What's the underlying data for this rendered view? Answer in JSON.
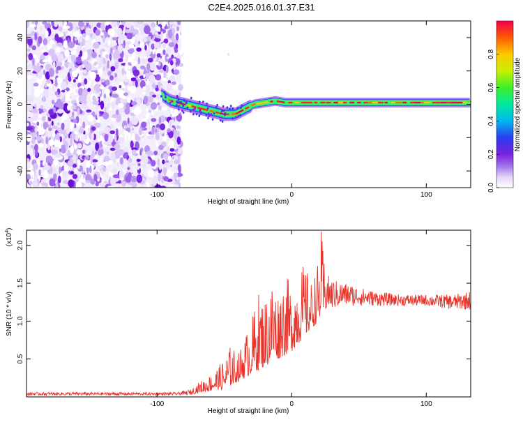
{
  "title": "C2E4.2025.016.01.37.E31",
  "chart_data": [
    {
      "type": "heatmap",
      "xlabel": "Height of straight line (km)",
      "ylabel": "Frequency (Hz)",
      "xlim": [
        -197,
        133
      ],
      "ylim": [
        -50,
        50
      ],
      "xticks": [
        -100,
        0,
        100
      ],
      "yticks": [
        -40,
        -20,
        0,
        20,
        40
      ],
      "noise_region_x": [
        -197,
        -82
      ],
      "signal_trace": {
        "x": [
          -97,
          -90,
          -80,
          -70,
          -60,
          -50,
          -42,
          -35,
          -28,
          -20,
          -12,
          -5,
          0,
          10,
          20,
          30,
          40,
          60,
          80,
          100,
          120,
          133
        ],
        "y": [
          6,
          2,
          0,
          -2,
          -4,
          -6,
          -6,
          -3,
          0,
          1,
          2,
          1,
          1,
          1,
          1,
          1,
          1,
          1,
          1,
          1,
          1,
          1
        ]
      },
      "colorbar": {
        "label": "Normalized spectral amplitude",
        "range": [
          0,
          1
        ],
        "ticks": [
          0.0,
          0.2,
          0.4,
          0.6,
          0.8
        ],
        "tick_labels": [
          "0.0",
          "0.2",
          "0.4",
          "0.6",
          "0.8"
        ]
      }
    },
    {
      "type": "line",
      "xlabel": "Height of straight line (km)",
      "ylabel": "SNR (10 * v/v)",
      "scale_label": "(x10",
      "scale_exp": "4",
      "scale_close": ")",
      "xlim": [
        -197,
        133
      ],
      "ylim": [
        0,
        22000
      ],
      "xticks": [
        -100,
        0,
        100
      ],
      "yticks": [
        5000,
        10000,
        15000,
        20000
      ],
      "ytick_labels": [
        "0.5",
        "1.0",
        "1.5",
        "2.0"
      ],
      "color": "#e8332a",
      "envelope": {
        "x": [
          -197,
          -85,
          -75,
          -70,
          -60,
          -50,
          -45,
          -40,
          -35,
          -30,
          -25,
          -20,
          -15,
          -10,
          -5,
          0,
          5,
          10,
          15,
          20,
          22,
          25,
          30,
          40,
          60,
          80,
          100,
          120,
          133
        ],
        "lower": [
          200,
          200,
          300,
          500,
          800,
          1000,
          1500,
          2000,
          2500,
          3000,
          3500,
          4000,
          4500,
          5000,
          5500,
          6000,
          7000,
          8000,
          9000,
          10000,
          10500,
          11000,
          11500,
          12000,
          12000,
          12000,
          12000,
          11500,
          11500
        ],
        "upper": [
          600,
          600,
          1000,
          1800,
          3000,
          5000,
          7000,
          5500,
          8000,
          10000,
          14000,
          13000,
          16000,
          14000,
          16500,
          14500,
          17000,
          17500,
          15000,
          18000,
          22000,
          16500,
          15500,
          15000,
          14000,
          13500,
          13500,
          13500,
          14000
        ]
      }
    }
  ]
}
